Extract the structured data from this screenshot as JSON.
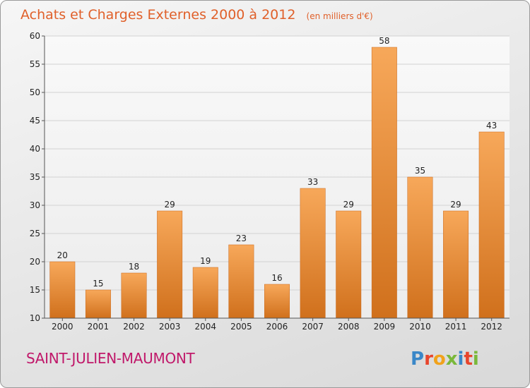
{
  "chart_data": {
    "type": "bar",
    "title": "Achats et Charges Externes 2000 à 2012",
    "subtitle": "(en milliers d'€)",
    "categories": [
      "2000",
      "2001",
      "2002",
      "2003",
      "2004",
      "2005",
      "2006",
      "2007",
      "2008",
      "2009",
      "2010",
      "2011",
      "2012"
    ],
    "values": [
      20,
      15,
      18,
      29,
      19,
      23,
      16,
      33,
      29,
      58,
      35,
      29,
      43
    ],
    "ylim": [
      10,
      60
    ],
    "yticks": [
      10,
      15,
      20,
      25,
      30,
      35,
      40,
      45,
      50,
      55,
      60
    ],
    "grid": true,
    "bar_color_top": "#f7a85a",
    "bar_color_bottom": "#d0701c"
  },
  "footer": {
    "commune": "SAINT-JULIEN-MAUMONT",
    "logo": "Proxiti"
  }
}
